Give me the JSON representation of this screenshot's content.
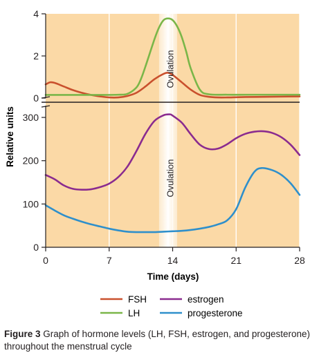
{
  "chart_data": {
    "type": "line",
    "ylabel": "Relative units",
    "xlabel": "Time (days)",
    "xlim": [
      0,
      28
    ],
    "x_ticks": [
      0,
      7,
      14,
      21,
      28
    ],
    "shaded_band": {
      "label": "Ovulation",
      "x_range": [
        12.5,
        14.5
      ]
    },
    "grid": "vertical lines at x ticks",
    "legend": {
      "placement": "bottom-center",
      "entries": [
        "FSH",
        "LH",
        "estrogen",
        "progesterone"
      ]
    },
    "panels": [
      {
        "name": "upper",
        "ylim": [
          0,
          4
        ],
        "y_ticks": [
          0,
          2,
          4
        ],
        "series": [
          {
            "name": "FSH",
            "color": "#c9502d",
            "x": [
              0,
              0.5,
              1,
              2,
              3,
              4,
              5,
              6,
              7,
              8,
              9,
              10,
              11,
              12,
              13,
              13.5,
              14,
              15,
              16,
              17,
              18,
              19,
              20,
              21,
              22,
              24,
              26,
              28
            ],
            "y": [
              0.65,
              0.75,
              0.72,
              0.55,
              0.38,
              0.25,
              0.15,
              0.08,
              0.03,
              0.03,
              0.1,
              0.25,
              0.55,
              0.9,
              1.15,
              1.2,
              1.1,
              0.75,
              0.4,
              0.15,
              0.06,
              0.03,
              0.03,
              0.04,
              0.05,
              0.06,
              0.07,
              0.08
            ]
          },
          {
            "name": "LH",
            "color": "#7ab648",
            "x": [
              0,
              2,
              4,
              6,
              8,
              9,
              10,
              10.5,
              11,
              12,
              12.5,
              13,
              13.5,
              14,
              14.5,
              15,
              15.5,
              16,
              17,
              18,
              20,
              22,
              24,
              26,
              28
            ],
            "y": [
              0.15,
              0.15,
              0.15,
              0.15,
              0.16,
              0.2,
              0.5,
              0.9,
              1.5,
              2.8,
              3.35,
              3.7,
              3.78,
              3.7,
              3.4,
              2.9,
              2.2,
              1.4,
              0.4,
              0.18,
              0.16,
              0.16,
              0.16,
              0.16,
              0.16
            ]
          }
        ]
      },
      {
        "name": "lower",
        "ylim": [
          0,
          300
        ],
        "y_ticks": [
          0,
          100,
          200,
          300
        ],
        "series": [
          {
            "name": "estrogen",
            "color": "#8a2b8f",
            "x": [
              0,
              1,
              2,
              3,
              4,
              5,
              6,
              7,
              8,
              9,
              10,
              11,
              12,
              13,
              13.7,
              14,
              15,
              16,
              17,
              18,
              19,
              20,
              21,
              22,
              23,
              24,
              25,
              26,
              27,
              28
            ],
            "y": [
              167,
              157,
              143,
              135,
              133,
              134,
              139,
              147,
              162,
              186,
              222,
              262,
              292,
              305,
              307,
              304,
              288,
              261,
              237,
              227,
              228,
              238,
              252,
              262,
              267,
              268,
              264,
              254,
              237,
              213
            ]
          },
          {
            "name": "progesterone",
            "color": "#2e8fcb",
            "x": [
              0,
              1,
              2,
              3,
              4,
              5,
              6,
              7,
              8,
              9,
              10,
              11,
              12,
              13,
              14,
              15,
              16,
              17,
              18,
              19,
              20,
              21,
              22,
              23,
              23.8,
              25,
              26,
              27,
              28
            ],
            "y": [
              97,
              85,
              74,
              66,
              59,
              53,
              48,
              43,
              39,
              36,
              35,
              35,
              35,
              36,
              37,
              38,
              40,
              43,
              47,
              53,
              62,
              88,
              138,
              174,
              183,
              178,
              167,
              148,
              121
            ]
          }
        ]
      }
    ]
  },
  "caption": {
    "figure_label": "Figure 3",
    "text": "Graph of hormone levels (LH, FSH, estrogen, and progesterone) throughout the menstrual cycle"
  }
}
